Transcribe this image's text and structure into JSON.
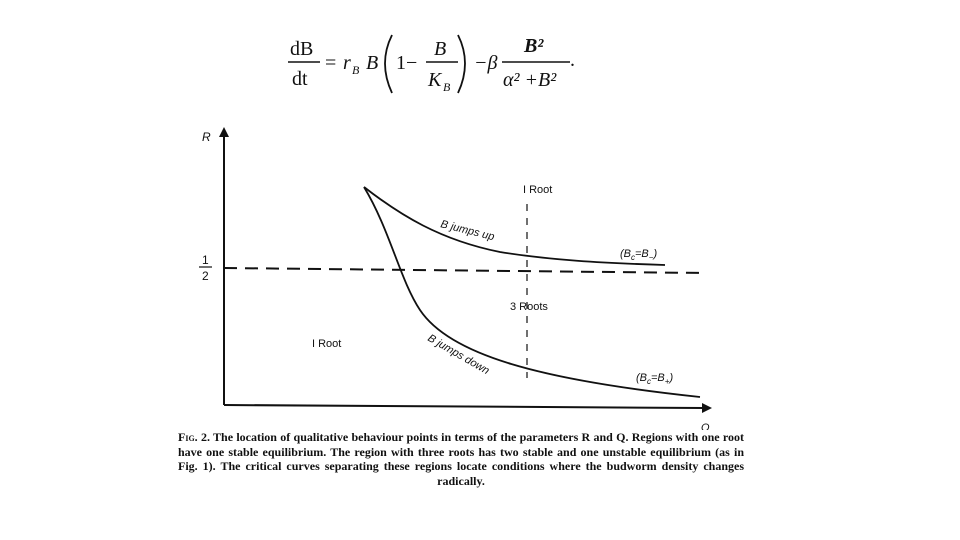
{
  "equation": {
    "lhs_num": "dB",
    "lhs_den": "dt",
    "equals": "=",
    "r": "r",
    "r_sub": "B",
    "B": "B",
    "one_minus": "1−",
    "frac1_num": "B",
    "frac1_den_K": "K",
    "frac1_den_sub": "B",
    "minus_beta": "−β",
    "frac2_num": "B²",
    "frac2_den": "α² +B²",
    "period": "."
  },
  "figure": {
    "y_axis_label": "R",
    "x_axis_label": "Q",
    "half_num": "1",
    "half_den": "2",
    "region_top": "I Root",
    "region_middle": "3 Roots",
    "region_left": "I Root",
    "curve_upper_label": "B jumps up",
    "curve_lower_label": "B jumps down",
    "upper_condition": "(Bc=B−)",
    "lower_condition": "(Bc=B+)"
  },
  "caption": {
    "label": "Fig. 2.",
    "text": "The location of qualitative behaviour points in terms of the parameters R and Q. Regions with one root have one stable equilibrium. The region with three roots has two stable and one unstable equilibrium (as in Fig. 1). The critical curves separating these regions locate conditions where the budworm density changes radically."
  }
}
